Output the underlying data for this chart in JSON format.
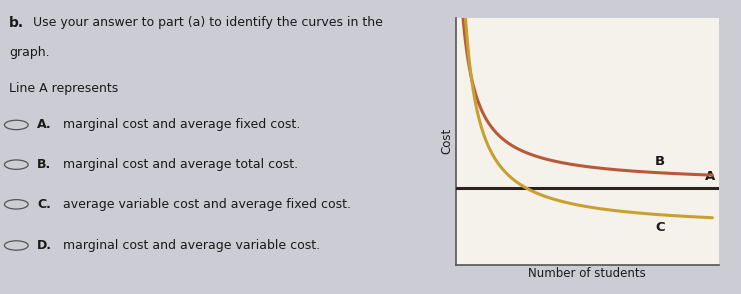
{
  "xlabel": "Number of students",
  "ylabel": "Cost",
  "label_A": "A",
  "label_B": "B",
  "label_C": "C",
  "curve_B_color": "#b85a3a",
  "curve_C_color": "#c8a030",
  "line_A_color": "#2a2320",
  "fig_background": "#ccccd4",
  "chart_background": "#f5f2ec",
  "text_color": "#1a1a1a",
  "options": [
    {
      "letter": "A.",
      "text": "marginal cost and average fixed cost."
    },
    {
      "letter": "B.",
      "text": "marginal cost and average total cost."
    },
    {
      "letter": "C.",
      "text": "average variable cost and average fixed cost."
    },
    {
      "letter": "D.",
      "text": "marginal cost and average variable cost."
    }
  ],
  "header_bold": "b.",
  "header_text": " Use your answer to part (a) to identify the curves in the",
  "header_line2": "graph.",
  "subheader": "Line A represents"
}
